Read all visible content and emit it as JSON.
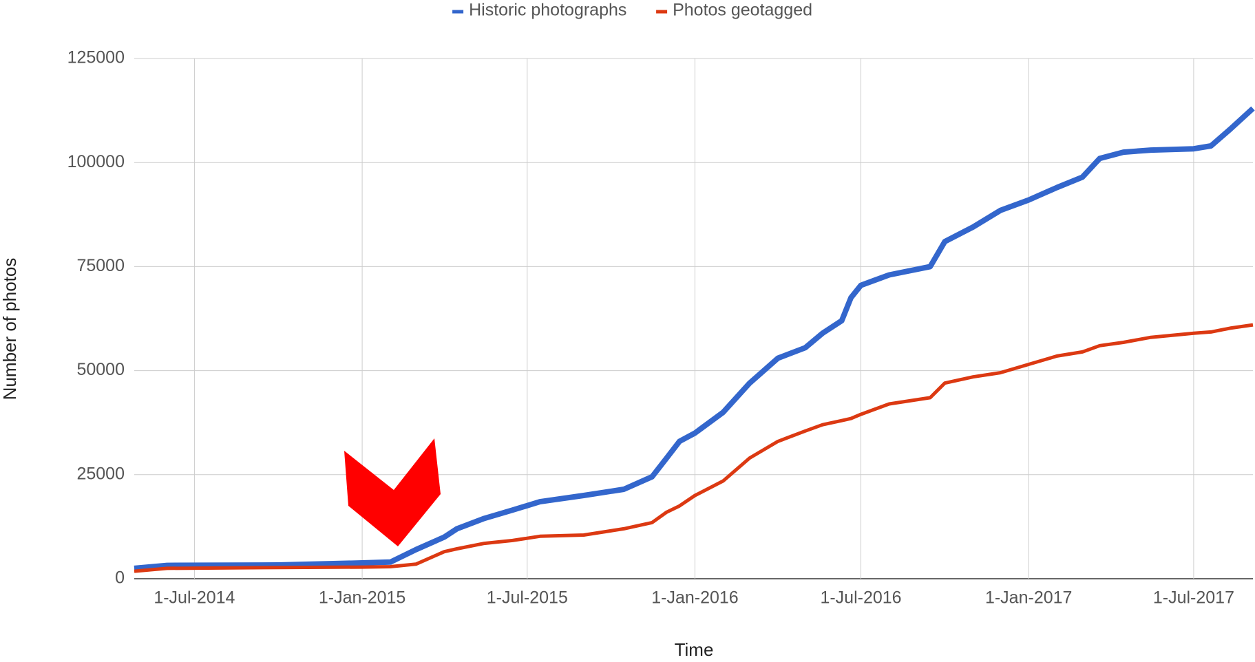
{
  "chart_data": {
    "type": "line",
    "xlabel": "Time",
    "ylabel": "Number of photos",
    "x": [
      "2014-04-26",
      "2014-06-01",
      "2014-10-01",
      "2015-01-01",
      "2015-02-01",
      "2015-03-01",
      "2015-04-01",
      "2015-04-15",
      "2015-05-15",
      "2015-06-15",
      "2015-07-15",
      "2015-09-01",
      "2015-10-15",
      "2015-11-15",
      "2015-12-01",
      "2015-12-15",
      "2016-01-01",
      "2016-02-01",
      "2016-03-01",
      "2016-04-01",
      "2016-05-01",
      "2016-05-20",
      "2016-06-10",
      "2016-06-20",
      "2016-07-01",
      "2016-08-01",
      "2016-09-15",
      "2016-10-01",
      "2016-11-01",
      "2016-12-01",
      "2017-01-01",
      "2017-02-01",
      "2017-03-01",
      "2017-03-20",
      "2017-04-15",
      "2017-05-15",
      "2017-07-01",
      "2017-07-20",
      "2017-08-10",
      "2017-09-04"
    ],
    "series": [
      {
        "name": "Historic photographs",
        "color": "#3366cc",
        "values": [
          2500,
          3200,
          3300,
          3800,
          4000,
          7000,
          10000,
          12000,
          14500,
          16500,
          18500,
          20000,
          21500,
          24500,
          29000,
          33000,
          35000,
          40000,
          47000,
          53000,
          55500,
          59000,
          62000,
          67500,
          70500,
          73000,
          75000,
          81000,
          84500,
          88500,
          91000,
          94000,
          96500,
          101000,
          102500,
          103000,
          103300,
          104000,
          108000,
          113000
        ]
      },
      {
        "name": "Photos geotagged",
        "color": "#dc3912",
        "values": [
          1800,
          2500,
          2700,
          2800,
          2900,
          3500,
          6500,
          7200,
          8500,
          9200,
          10200,
          10500,
          12000,
          13500,
          16000,
          17500,
          20000,
          23500,
          29000,
          33000,
          35500,
          37000,
          38000,
          38500,
          39500,
          42000,
          43500,
          47000,
          48500,
          49500,
          51500,
          53500,
          54500,
          56000,
          56800,
          58000,
          59000,
          59300,
          60200,
          61000
        ]
      }
    ],
    "xlim": [
      "2014-04-26",
      "2017-09-04"
    ],
    "xticks": [
      {
        "value": "2014-07-01",
        "label": "1-Jul-2014"
      },
      {
        "value": "2015-01-01",
        "label": "1-Jan-2015"
      },
      {
        "value": "2015-07-01",
        "label": "1-Jul-2015"
      },
      {
        "value": "2016-01-01",
        "label": "1-Jan-2016"
      },
      {
        "value": "2016-07-01",
        "label": "1-Jul-2016"
      },
      {
        "value": "2017-01-01",
        "label": "1-Jan-2017"
      },
      {
        "value": "2017-07-01",
        "label": "1-Jul-2017"
      }
    ],
    "ylim": [
      0,
      125000
    ],
    "yticks": [
      0,
      25000,
      50000,
      75000,
      100000,
      125000
    ],
    "grid": true,
    "legend": "top"
  }
}
